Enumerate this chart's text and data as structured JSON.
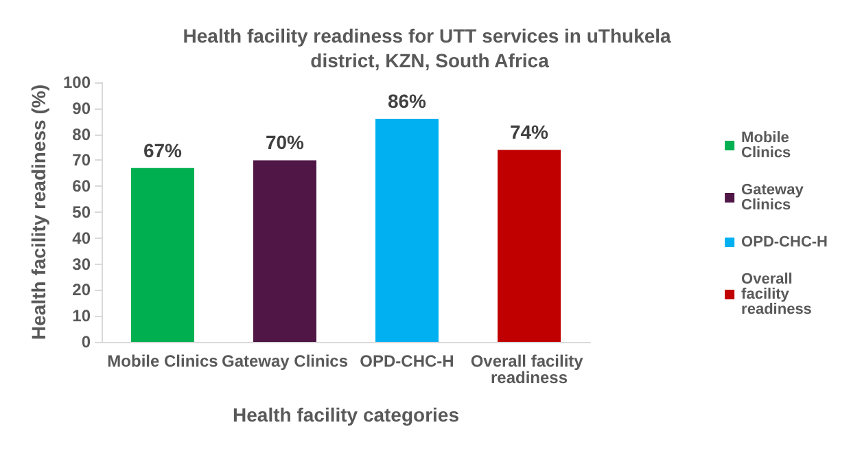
{
  "chart_data": {
    "type": "bar",
    "title": "Health facility readiness for UTT services in uThukela district, KZN, South Africa",
    "xlabel": "Health facility categories",
    "ylabel": "Health facility readiness (%)",
    "categories": [
      "Mobile Clinics",
      "Gateway Clinics",
      "OPD-CHC-H",
      "Overall facility readiness"
    ],
    "stacked": true,
    "series": [
      {
        "name": "Mobile Clinics",
        "color": "#00b050",
        "values": [
          67,
          null,
          null,
          null
        ],
        "value_labels": [
          "67%",
          null,
          null,
          null
        ]
      },
      {
        "name": "Gateway Clinics",
        "color": "#4f1646",
        "values": [
          null,
          70,
          null,
          null
        ],
        "value_labels": [
          null,
          "70%",
          null,
          null
        ]
      },
      {
        "name": "OPD-CHC-H",
        "color": "#00b0f0",
        "values": [
          null,
          null,
          86,
          null
        ],
        "value_labels": [
          null,
          null,
          "86%",
          null
        ]
      },
      {
        "name": "Overall facility readiness",
        "color": "#c00000",
        "values": [
          null,
          null,
          null,
          74
        ],
        "value_labels": [
          null,
          null,
          null,
          "74%"
        ]
      }
    ],
    "ylim": [
      0,
      100
    ],
    "yticks": [
      0,
      10,
      20,
      30,
      40,
      50,
      60,
      70,
      80,
      90,
      100
    ],
    "grid": false,
    "legend": "right"
  }
}
